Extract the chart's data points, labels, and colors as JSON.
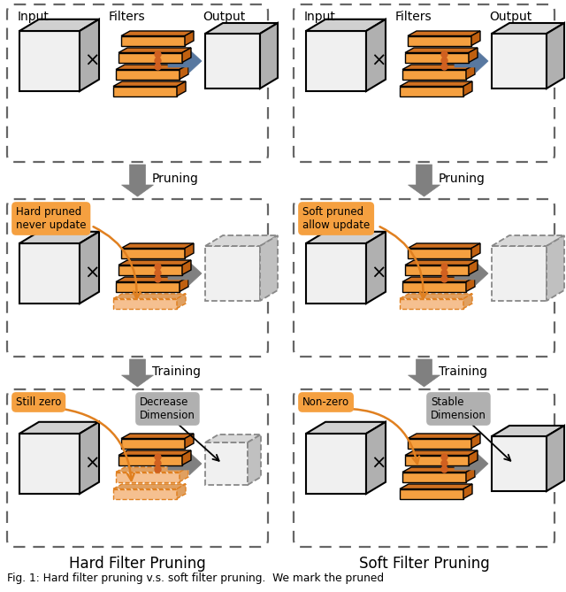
{
  "orange_face": "#F5A040",
  "orange_top": "#E08020",
  "orange_side": "#C86010",
  "orange_light_face": "#F5C090",
  "orange_light_top": "#E0A060",
  "cube_face": "#F0F0F0",
  "cube_top": "#D0D0D0",
  "cube_side": "#B0B0B0",
  "cube_dark_face": "#D8D8D8",
  "cube_dark_top": "#B8B8B8",
  "cube_dark_side": "#989898",
  "arrow_blue": "#5878A0",
  "arrow_gray": "#808080",
  "dot_color": "#D06020",
  "tag_orange": "#F5A040",
  "tag_gray": "#B0B0B0",
  "outer_box_color": "#666666",
  "hard_title": "Hard Filter Pruning",
  "soft_title": "Soft Filter Pruning",
  "caption": "Fig. 1: Hard filter pruning v.s. soft filter pruning.  We mark the pruned"
}
